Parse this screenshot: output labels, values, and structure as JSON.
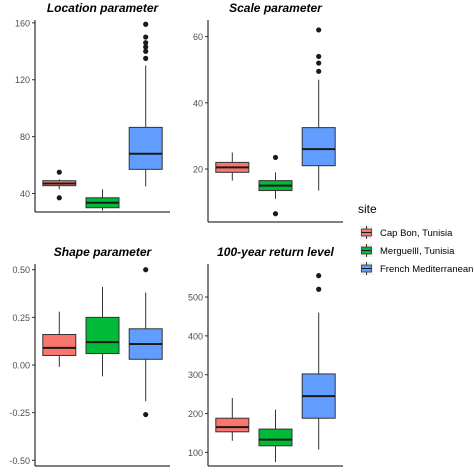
{
  "chart_data": [
    {
      "type": "box",
      "title": "Location parameter",
      "ylim": [
        27,
        162
      ],
      "yticks": [
        40,
        80,
        120,
        160
      ],
      "boxes": [
        {
          "series": "Cap Bon, Tunisia",
          "q1": 45.5,
          "median": 47,
          "q3": 49,
          "whisker_low": 43,
          "whisker_high": 50,
          "outliers": [
            37,
            55
          ]
        },
        {
          "series": "MerguellI, Tunisia",
          "q1": 30,
          "median": 33.5,
          "q3": 37,
          "whisker_low": 28,
          "whisker_high": 43,
          "outliers": []
        },
        {
          "series": "French Mediterranean",
          "q1": 57,
          "median": 68,
          "q3": 86.5,
          "whisker_low": 45,
          "whisker_high": 130,
          "outliers": [
            135,
            140,
            143,
            146,
            150,
            159
          ]
        }
      ]
    },
    {
      "type": "box",
      "title": "Scale parameter",
      "ylim": [
        4,
        65
      ],
      "yticks": [
        20,
        40,
        60
      ],
      "boxes": [
        {
          "series": "Cap Bon, Tunisia",
          "q1": 19,
          "median": 20.5,
          "q3": 22,
          "whisker_low": 16.5,
          "whisker_high": 25,
          "outliers": []
        },
        {
          "series": "MerguellI, Tunisia",
          "q1": 13.5,
          "median": 15,
          "q3": 16.5,
          "whisker_low": 11,
          "whisker_high": 19,
          "outliers": [
            6.5,
            23.5
          ]
        },
        {
          "series": "French Mediterranean",
          "q1": 21,
          "median": 26,
          "q3": 32.5,
          "whisker_low": 13.5,
          "whisker_high": 47,
          "outliers": [
            49.5,
            52,
            54,
            62
          ]
        }
      ]
    },
    {
      "type": "box",
      "title": "Shape parameter",
      "ylim": [
        -0.53,
        0.53
      ],
      "yticks": [
        -0.5,
        -0.25,
        0.0,
        0.25,
        0.5
      ],
      "ytick_labels": [
        "-0.50",
        "-0.25",
        "0.00",
        "0.25",
        "0.50"
      ],
      "boxes": [
        {
          "series": "Cap Bon, Tunisia",
          "q1": 0.05,
          "median": 0.09,
          "q3": 0.16,
          "whisker_low": -0.01,
          "whisker_high": 0.28,
          "outliers": []
        },
        {
          "series": "MerguellI, Tunisia",
          "q1": 0.06,
          "median": 0.12,
          "q3": 0.25,
          "whisker_low": -0.06,
          "whisker_high": 0.41,
          "outliers": []
        },
        {
          "series": "French Mediterranean",
          "q1": 0.03,
          "median": 0.11,
          "q3": 0.19,
          "whisker_low": -0.19,
          "whisker_high": 0.38,
          "outliers": [
            -0.26,
            0.5
          ]
        }
      ]
    },
    {
      "type": "box",
      "title": "100-year return level",
      "ylim": [
        65,
        585
      ],
      "yticks": [
        100,
        200,
        300,
        400,
        500
      ],
      "boxes": [
        {
          "series": "Cap Bon, Tunisia",
          "q1": 153,
          "median": 165,
          "q3": 188,
          "whisker_low": 130,
          "whisker_high": 240,
          "outliers": []
        },
        {
          "series": "MerguellI, Tunisia",
          "q1": 117,
          "median": 133,
          "q3": 160,
          "whisker_low": 75,
          "whisker_high": 210,
          "outliers": []
        },
        {
          "series": "French Mediterranean",
          "q1": 188,
          "median": 245,
          "q3": 302,
          "whisker_low": 107,
          "whisker_high": 460,
          "outliers": [
            520,
            555
          ]
        }
      ]
    }
  ],
  "legend": {
    "title": "site",
    "position": "right",
    "items": [
      {
        "label": "Cap Bon, Tunisia",
        "color": "#F8766D"
      },
      {
        "label": "MerguellI, Tunisia",
        "color": "#00BA38"
      },
      {
        "label": "French Mediterranean",
        "color": "#619CFF"
      }
    ]
  },
  "colors": {
    "Cap Bon, Tunisia": "#F8766D",
    "MerguellI, Tunisia": "#00BA38",
    "French Mediterranean": "#619CFF"
  }
}
